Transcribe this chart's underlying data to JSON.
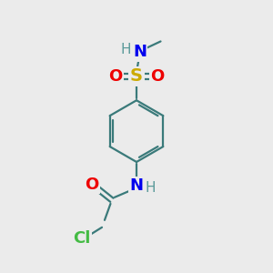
{
  "bg_color": "#ebebeb",
  "atom_colors": {
    "C": "#3a7a7a",
    "H": "#5a9a9a",
    "N": "#0000ee",
    "O": "#ee0000",
    "S": "#ccaa00",
    "Cl": "#44bb44"
  },
  "bond_color": "#3a7a7a",
  "font_size_atoms": 13,
  "font_size_small": 10,
  "figsize": [
    3.0,
    3.0
  ],
  "dpi": 100,
  "xlim": [
    0,
    10
  ],
  "ylim": [
    0,
    10
  ]
}
